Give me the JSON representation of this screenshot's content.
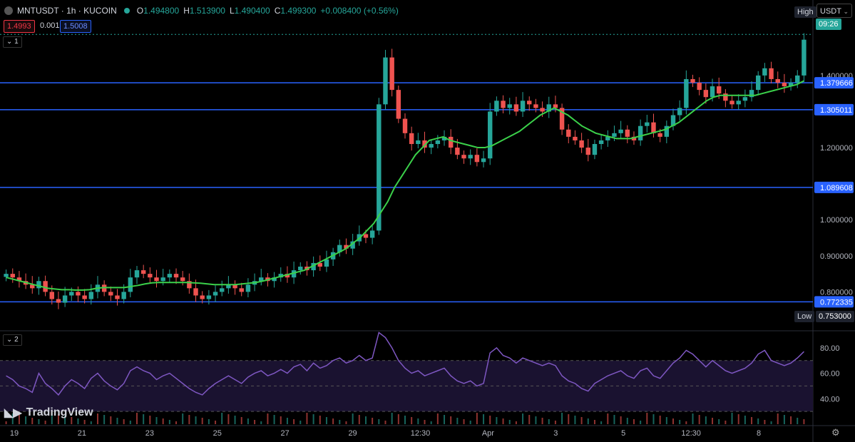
{
  "header": {
    "symbol": "MNTUSDT · 1h · KUCOIN",
    "open_label": "O",
    "open": "1.494800",
    "high_label": "H",
    "high": "1.513900",
    "low_label": "L",
    "low": "1.490400",
    "close_label": "C",
    "close": "1.499300",
    "change": "+0.008400 (+0.56%)"
  },
  "trade": {
    "sell_price": "1.4993",
    "spread": "0.0015",
    "buy_price": "1.5008"
  },
  "panes": {
    "main_index": "1",
    "rsi_index": "2"
  },
  "currency": {
    "label": "USDT"
  },
  "brand": {
    "name": "TradingView"
  },
  "markers": {
    "high_label": "High",
    "low_label": "Low",
    "countdown": "09:26",
    "low_value": "0.753000"
  },
  "colors": {
    "up": "#26a69a",
    "down": "#ef5350",
    "ma": "#3bd14a",
    "rsi": "#7e57c2",
    "level": "#2962ff",
    "grid": "#1a1a1a"
  },
  "chart_data": [
    {
      "type": "candlestick",
      "x_ticks": [
        "19",
        "21",
        "23",
        "25",
        "27",
        "29",
        "12:30",
        "Apr",
        "3",
        "5",
        "12:30",
        "8"
      ],
      "y_ticks": [
        "1.400000",
        "1.300000",
        "1.200000",
        "1.000000",
        "0.900000",
        "0.800000"
      ],
      "ylim": [
        0.7,
        1.55
      ],
      "horizontal_levels": [
        1.379666,
        1.305011,
        1.089608,
        0.772335
      ],
      "level_labels": [
        "1.379666",
        "1.305011",
        "1.089608",
        "0.772335"
      ],
      "high": 1.5139,
      "low": 0.753,
      "close": [
        0.85,
        0.84,
        0.83,
        0.82,
        0.81,
        0.83,
        0.8,
        0.78,
        0.77,
        0.79,
        0.8,
        0.79,
        0.78,
        0.8,
        0.82,
        0.8,
        0.79,
        0.78,
        0.8,
        0.84,
        0.86,
        0.85,
        0.84,
        0.83,
        0.84,
        0.85,
        0.84,
        0.83,
        0.81,
        0.79,
        0.78,
        0.79,
        0.8,
        0.81,
        0.82,
        0.81,
        0.8,
        0.82,
        0.83,
        0.84,
        0.83,
        0.84,
        0.85,
        0.84,
        0.86,
        0.87,
        0.86,
        0.88,
        0.87,
        0.89,
        0.91,
        0.93,
        0.92,
        0.94,
        0.96,
        0.95,
        0.97,
        1.32,
        1.45,
        1.36,
        1.28,
        1.24,
        1.21,
        1.22,
        1.2,
        1.21,
        1.22,
        1.23,
        1.2,
        1.18,
        1.17,
        1.18,
        1.16,
        1.17,
        1.3,
        1.33,
        1.31,
        1.32,
        1.3,
        1.33,
        1.32,
        1.31,
        1.3,
        1.32,
        1.31,
        1.25,
        1.23,
        1.22,
        1.2,
        1.18,
        1.21,
        1.22,
        1.23,
        1.24,
        1.25,
        1.23,
        1.22,
        1.26,
        1.27,
        1.24,
        1.23,
        1.26,
        1.29,
        1.31,
        1.39,
        1.38,
        1.36,
        1.34,
        1.37,
        1.35,
        1.33,
        1.32,
        1.33,
        1.34,
        1.36,
        1.4,
        1.42,
        1.39,
        1.38,
        1.37,
        1.38,
        1.4,
        1.4993
      ],
      "ma": [
        0.84,
        0.835,
        0.83,
        0.825,
        0.82,
        0.815,
        0.81,
        0.808,
        0.806,
        0.806,
        0.805,
        0.805,
        0.806,
        0.81,
        0.812,
        0.812,
        0.812,
        0.812,
        0.815,
        0.818,
        0.822,
        0.825,
        0.826,
        0.826,
        0.826,
        0.826,
        0.826,
        0.825,
        0.824,
        0.822,
        0.82,
        0.82,
        0.82,
        0.82,
        0.822,
        0.824,
        0.826,
        0.83,
        0.835,
        0.84,
        0.845,
        0.85,
        0.855,
        0.86,
        0.87,
        0.88,
        0.89,
        0.9,
        0.91,
        0.92,
        0.935,
        0.95,
        0.97,
        0.99,
        1.02,
        1.05,
        1.09,
        1.12,
        1.15,
        1.18,
        1.2,
        1.22,
        1.225,
        1.23,
        1.22,
        1.215,
        1.21,
        1.205,
        1.2,
        1.2,
        1.205,
        1.215,
        1.225,
        1.235,
        1.245,
        1.26,
        1.275,
        1.29,
        1.3,
        1.31,
        1.3,
        1.29,
        1.275,
        1.26,
        1.25,
        1.24,
        1.235,
        1.23,
        1.225,
        1.225,
        1.225,
        1.23,
        1.235,
        1.24,
        1.245,
        1.25,
        1.26,
        1.27,
        1.285,
        1.3,
        1.315,
        1.33,
        1.34,
        1.345,
        1.345,
        1.345,
        1.345,
        1.345,
        1.345,
        1.35,
        1.355,
        1.36,
        1.365,
        1.37,
        1.375,
        1.385
      ]
    },
    {
      "type": "line",
      "name": "RSI",
      "y_ticks": [
        "80.00",
        "60.00",
        "40.00"
      ],
      "ylim": [
        20,
        90
      ],
      "bands": [
        70,
        50,
        30
      ],
      "values": [
        58,
        55,
        50,
        48,
        45,
        60,
        52,
        48,
        43,
        50,
        55,
        52,
        48,
        56,
        60,
        54,
        50,
        47,
        52,
        62,
        65,
        62,
        60,
        55,
        58,
        60,
        56,
        52,
        48,
        45,
        43,
        48,
        52,
        55,
        58,
        55,
        52,
        57,
        60,
        62,
        58,
        60,
        63,
        60,
        65,
        67,
        62,
        68,
        64,
        66,
        70,
        72,
        68,
        70,
        74,
        70,
        72,
        92,
        88,
        80,
        70,
        64,
        60,
        62,
        58,
        60,
        62,
        64,
        58,
        54,
        52,
        54,
        50,
        52,
        76,
        80,
        74,
        72,
        68,
        72,
        70,
        68,
        66,
        68,
        66,
        58,
        54,
        52,
        48,
        46,
        52,
        55,
        58,
        60,
        62,
        58,
        56,
        62,
        64,
        58,
        56,
        62,
        68,
        72,
        78,
        75,
        70,
        65,
        70,
        66,
        62,
        60,
        62,
        64,
        68,
        75,
        78,
        70,
        68,
        66,
        68,
        72,
        77
      ]
    }
  ]
}
